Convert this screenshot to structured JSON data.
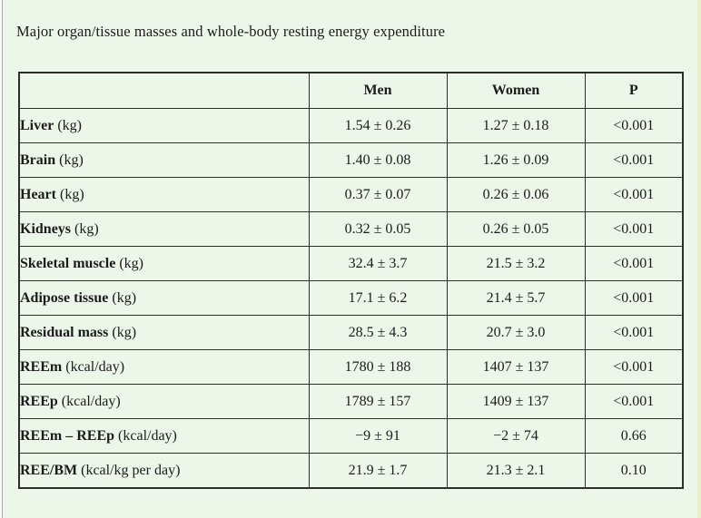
{
  "caption": "Major organ/tissue masses and whole-body resting energy expenditure",
  "table": {
    "headers": [
      "",
      "Men",
      "Women",
      "P"
    ],
    "header_keys": [
      "label",
      "men",
      "women",
      "p"
    ],
    "rows": [
      {
        "name": "Liver",
        "unit": "(kg)",
        "men": "1.54 ± 0.26",
        "women": "1.27 ± 0.18",
        "p": "<0.001"
      },
      {
        "name": "Brain",
        "unit": "(kg)",
        "men": "1.40 ± 0.08",
        "women": "1.26 ± 0.09",
        "p": "<0.001"
      },
      {
        "name": "Heart",
        "unit": "(kg)",
        "men": "0.37 ± 0.07",
        "women": "0.26 ± 0.06",
        "p": "<0.001"
      },
      {
        "name": "Kidneys",
        "unit": "(kg)",
        "men": "0.32 ± 0.05",
        "women": "0.26 ± 0.05",
        "p": "<0.001"
      },
      {
        "name": "Skeletal muscle",
        "unit": "(kg)",
        "men": "32.4 ± 3.7",
        "women": "21.5 ± 3.2",
        "p": "<0.001"
      },
      {
        "name": "Adipose tissue",
        "unit": "(kg)",
        "men": "17.1 ± 6.2",
        "women": "21.4 ± 5.7",
        "p": "<0.001"
      },
      {
        "name": "Residual mass",
        "unit": "(kg)",
        "men": "28.5 ± 4.3",
        "women": "20.7 ± 3.0",
        "p": "<0.001"
      },
      {
        "name": "REEm",
        "unit": "(kcal/day)",
        "men": "1780 ± 188",
        "women": "1407 ± 137",
        "p": "<0.001"
      },
      {
        "name": "REEp",
        "unit": "(kcal/day)",
        "men": "1789 ± 157",
        "women": "1409 ± 137",
        "p": "<0.001"
      },
      {
        "name": "REEm – REEp",
        "unit": "(kcal/day)",
        "men": "−9 ± 91",
        "women": "−2 ± 74",
        "p": "0.66"
      },
      {
        "name": "REE/BM",
        "unit": "(kcal/kg per day)",
        "men": "21.9 ± 1.7",
        "women": "21.3 ± 2.1",
        "p": "0.10"
      }
    ]
  },
  "colors": {
    "background": "#ecf6e9",
    "table_border": "#2d2d2d",
    "text": "#1c1c1c",
    "left_edge_line": "#a8a8a8",
    "right_edge_strip": "#e9efc8"
  }
}
